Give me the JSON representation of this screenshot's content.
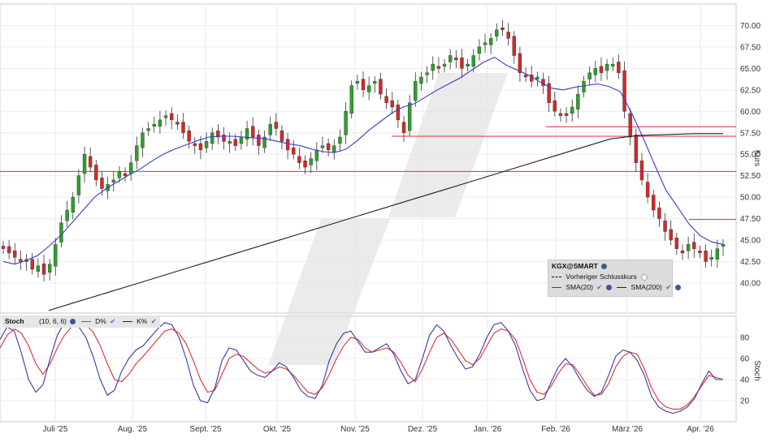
{
  "chart_data": [
    {
      "type": "candlestick",
      "symbol": "KGX@SMART",
      "ylabel": "Kurs",
      "ylim": [
        36.5,
        72.5
      ],
      "y_ticks": [
        "40.00",
        "42.50",
        "45.00",
        "47.50",
        "50.00",
        "52.50",
        "55.00",
        "57.50",
        "60.00",
        "62.50",
        "65.00",
        "67.50",
        "70.00"
      ],
      "y_tick_values": [
        40,
        42.5,
        45,
        47.5,
        50,
        52.5,
        55,
        57.5,
        60,
        62.5,
        65,
        67.5,
        70
      ],
      "x_ticks": [
        "Juli '25",
        "Aug. '25",
        "Sept. '25",
        "Okt. '25",
        "Nov. '25",
        "Dez. '25",
        "Jan. '26",
        "Feb. '26",
        "März '26",
        "Apr. '26"
      ],
      "grid": true,
      "colors": {
        "up": "#2ca02c",
        "down": "#d62728",
        "sma20": "#3a3ac8",
        "sma200": "#222222",
        "hline": "#e0303a",
        "stoch_k": "#3a3a9a",
        "stoch_d": "#e0303a"
      },
      "close_series": [
        44.0,
        43.5,
        43.0,
        42.5,
        42.5,
        41.6,
        42.0,
        41.0,
        42.2,
        44.5,
        47.0,
        48.5,
        50.0,
        52.5,
        55.0,
        53.5,
        52.0,
        51.0,
        51.5,
        52.0,
        53.0,
        52.5,
        54.0,
        56.0,
        57.5,
        58.0,
        58.5,
        59.0,
        59.5,
        59.0,
        58.5,
        57.5,
        56.5,
        56.0,
        55.5,
        56.5,
        57.5,
        57.0,
        56.5,
        56.5,
        56.0,
        57.0,
        58.0,
        57.0,
        56.0,
        57.0,
        58.5,
        58.0,
        56.5,
        55.5,
        55.0,
        54.0,
        53.5,
        54.5,
        55.5,
        56.0,
        55.5,
        56.0,
        57.0,
        60.0,
        63.0,
        63.5,
        62.5,
        63.0,
        63.5,
        62.0,
        61.0,
        60.5,
        59.0,
        57.5,
        61.0,
        63.5,
        64.0,
        64.5,
        65.5,
        65.0,
        65.5,
        66.5,
        66.0,
        65.0,
        65.5,
        66.5,
        67.5,
        68.0,
        68.5,
        69.5,
        69.5,
        68.5,
        66.5,
        64.5,
        64.0,
        63.5,
        64.0,
        63.0,
        61.0,
        60.0,
        59.5,
        59.5,
        60.5,
        62.0,
        63.5,
        64.5,
        65.0,
        64.5,
        65.5,
        65.5,
        64.5,
        60.0,
        57.0,
        54.0,
        52.0,
        50.0,
        48.5,
        47.5,
        46.0,
        45.0,
        44.0,
        43.5,
        44.5,
        44.0,
        43.5,
        42.5,
        43.0,
        44.0,
        44.5
      ],
      "candle_labels": "Kerzen ohne Datenbeschriftung",
      "sma20": {
        "name": "SMA(20)",
        "values": [
          42.5,
          42.2,
          42.6,
          43.2,
          44.3,
          45.5,
          47.0,
          48.5,
          50.0,
          51.0,
          51.8,
          52.6,
          53.3,
          54.2,
          55.0,
          55.6,
          56.1,
          56.6,
          57.0,
          57.1,
          57.1,
          57.0,
          56.9,
          56.8,
          56.5,
          56.2,
          56.0,
          55.6,
          55.3,
          55.2,
          55.6,
          56.6,
          57.8,
          58.8,
          59.8,
          60.5,
          60.9,
          61.7,
          62.5,
          63.2,
          63.9,
          64.8,
          65.7,
          66.3,
          65.4,
          64.8,
          64.2,
          63.4,
          62.7,
          62.5,
          62.8,
          63.0,
          63.2,
          62.9,
          62.3,
          59.8,
          56.9,
          53.8,
          50.8,
          48.9,
          46.9,
          45.5,
          44.8,
          44.5
        ]
      },
      "sma200": {
        "name": "SMA(200)",
        "values": [
          36.8,
          37.8,
          38.8,
          39.8,
          40.8,
          41.8,
          42.8,
          43.8,
          44.8,
          45.8,
          46.8,
          47.8,
          48.8,
          49.8,
          50.8,
          51.8,
          52.8,
          53.8,
          54.8,
          55.8,
          56.8,
          57.2,
          57.3,
          57.4,
          57.4
        ]
      },
      "hlines": [
        53.0,
        57.1,
        58.2,
        47.4
      ],
      "legend": {
        "symbol": "KGX@SMART",
        "prev_close": "Vorheriger Schlusskurs",
        "sma20_label": "SMA(20)",
        "sma200_label": "SMA(200)"
      }
    },
    {
      "type": "line",
      "title": "Stoch",
      "params": "(10, 6, 6)",
      "ylabel": "Stoch",
      "ylim": [
        0,
        100
      ],
      "y_ticks": [
        "20",
        "40",
        "60",
        "80"
      ],
      "y_tick_values": [
        20,
        40,
        60,
        80
      ],
      "series": [
        {
          "name": "D%",
          "values": [
            70,
            82,
            88,
            84,
            72,
            55,
            45,
            55,
            70,
            82,
            90,
            94,
            92,
            85,
            72,
            55,
            40,
            38,
            45,
            55,
            62,
            70,
            78,
            86,
            88,
            84,
            74,
            58,
            40,
            28,
            30,
            45,
            60,
            64,
            62,
            56,
            50,
            46,
            48,
            52,
            50,
            44,
            36,
            28,
            26,
            32,
            45,
            60,
            72,
            80,
            78,
            70,
            66,
            68,
            70,
            66,
            56,
            44,
            38,
            50,
            66,
            80,
            84,
            78,
            68,
            58,
            54,
            60,
            72,
            84,
            88,
            86,
            78,
            60,
            40,
            28,
            26,
            34,
            46,
            55,
            54,
            45,
            34,
            25,
            26,
            36,
            52,
            62,
            66,
            64,
            50,
            32,
            20,
            14,
            12,
            12,
            16,
            24,
            34,
            44,
            42,
            40
          ]
        },
        {
          "name": "K%",
          "values": [
            78,
            90,
            86,
            65,
            40,
            28,
            35,
            60,
            82,
            94,
            96,
            90,
            80,
            62,
            40,
            25,
            30,
            48,
            60,
            68,
            72,
            80,
            88,
            94,
            92,
            80,
            60,
            35,
            20,
            18,
            32,
            58,
            70,
            68,
            58,
            48,
            44,
            42,
            48,
            56,
            52,
            42,
            30,
            24,
            22,
            34,
            58,
            74,
            84,
            86,
            76,
            66,
            66,
            70,
            74,
            64,
            48,
            36,
            40,
            60,
            82,
            92,
            86,
            72,
            60,
            50,
            52,
            64,
            80,
            92,
            94,
            86,
            72,
            50,
            30,
            20,
            22,
            38,
            52,
            60,
            52,
            40,
            30,
            24,
            28,
            44,
            62,
            68,
            66,
            58,
            44,
            24,
            14,
            10,
            8,
            10,
            14,
            22,
            36,
            48,
            40,
            40
          ]
        }
      ],
      "legend": {
        "title": "Stoch",
        "params": "(10, 6, 6)",
        "d_label": "D%",
        "k_label": "K%"
      }
    }
  ]
}
